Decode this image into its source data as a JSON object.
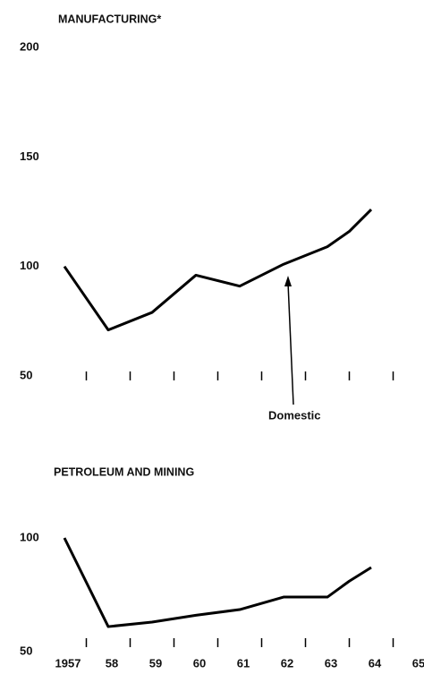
{
  "chart_data": [
    {
      "type": "line",
      "title": "MANUFACTURING*",
      "x": [
        1957,
        1958,
        1959,
        1960,
        1961,
        1962,
        1963,
        1963.5,
        1964
      ],
      "series": [
        {
          "name": "Domestic",
          "color": "#000000",
          "values": [
            100,
            71,
            79,
            96,
            91,
            101,
            109,
            116,
            126
          ]
        }
      ],
      "xlim": [
        1957,
        1965
      ],
      "minor_xticks": [
        1957.5,
        1958.5,
        1959.5,
        1960.5,
        1961.5,
        1962.5,
        1963.5,
        1964.5
      ],
      "ylim": [
        50,
        200
      ],
      "yticks": [
        50,
        100,
        150,
        200
      ]
    },
    {
      "type": "line",
      "title": "PETROLEUM AND MINING",
      "x": [
        1957,
        1958,
        1959,
        1960,
        1961,
        1962,
        1963,
        1963.5,
        1964
      ],
      "series": [
        {
          "name": "Domestic",
          "color": "#000000",
          "values": [
            100,
            61,
            63,
            66,
            68.5,
            74,
            74,
            81,
            87
          ]
        }
      ],
      "xlim": [
        1957,
        1965
      ],
      "minor_xticks": [
        1957.5,
        1958.5,
        1959.5,
        1960.5,
        1961.5,
        1962.5,
        1963.5,
        1964.5
      ],
      "xticks": [
        {
          "value": 1957,
          "label": "1957"
        },
        {
          "value": 1958,
          "label": "58"
        },
        {
          "value": 1959,
          "label": "59"
        },
        {
          "value": 1960,
          "label": "60"
        },
        {
          "value": 1961,
          "label": "61"
        },
        {
          "value": 1962,
          "label": "62"
        },
        {
          "value": 1963,
          "label": "63"
        },
        {
          "value": 1964,
          "label": "64"
        },
        {
          "value": 1965,
          "label": "65"
        }
      ],
      "ylim": [
        50,
        100
      ],
      "yticks": [
        50,
        100
      ]
    }
  ]
}
